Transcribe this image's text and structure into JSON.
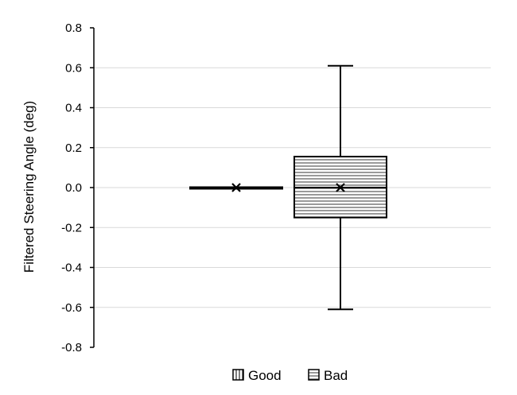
{
  "chart_data": {
    "type": "box",
    "title": "",
    "xlabel": "",
    "ylabel": "Filtered Steering Angle (deg)",
    "ylim": [
      -0.8,
      0.8
    ],
    "yticks": [
      "0.8",
      "0.6",
      "0.4",
      "0.2",
      "0.0",
      "-0.2",
      "-0.4",
      "-0.6",
      "-0.8"
    ],
    "ytick_values": [
      0.8,
      0.6,
      0.4,
      0.2,
      0.0,
      -0.2,
      -0.4,
      -0.6,
      -0.8
    ],
    "grid": true,
    "legend_position": "bottom",
    "series": [
      {
        "name": "Good",
        "pattern": "vertical-lines",
        "min": -0.002,
        "q1": -0.002,
        "median": 0.0,
        "q3": 0.002,
        "max": 0.002,
        "mean": 0.0
      },
      {
        "name": "Bad",
        "pattern": "horizontal-lines",
        "min": -0.61,
        "q1": -0.15,
        "median": 0.0,
        "q3": 0.155,
        "max": 0.61,
        "mean": 0.0
      }
    ]
  }
}
